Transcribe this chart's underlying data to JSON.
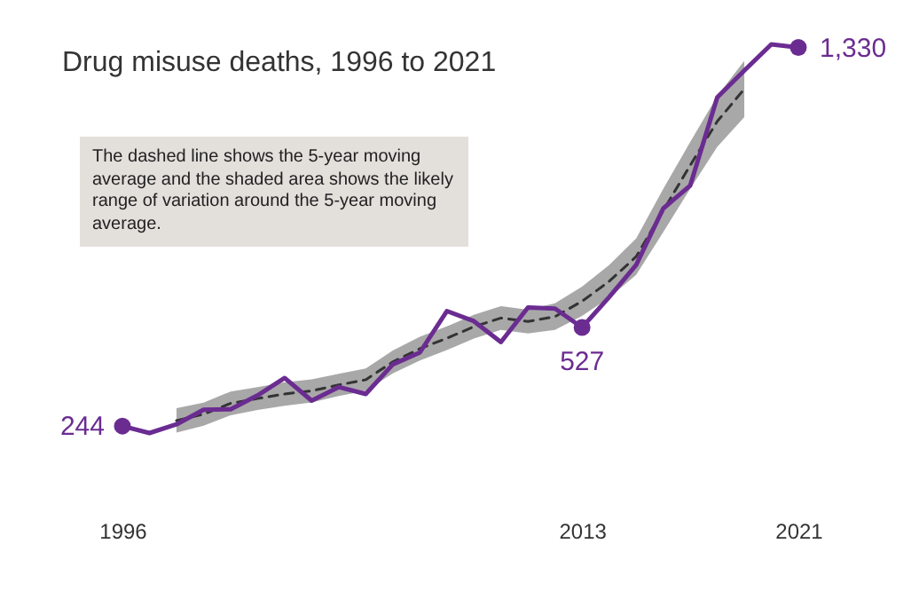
{
  "chart_data": {
    "type": "line",
    "title": "Drug misuse deaths, 1996 to 2021",
    "annotations": [
      "The dashed line shows the 5-year moving average and the shaded area shows the likely range of variation around the 5-year moving average."
    ],
    "categories": [
      "1996",
      null,
      null,
      null,
      null,
      null,
      null,
      null,
      null,
      null,
      null,
      null,
      null,
      null,
      null,
      null,
      null,
      "2013",
      null,
      null,
      null,
      null,
      null,
      null,
      null,
      "2021"
    ],
    "series": [
      {
        "color": "#6b2c91",
        "values": [
          244,
          224,
          249,
          291,
          292,
          332,
          382,
          317,
          356,
          336,
          421,
          455,
          574,
          545,
          485,
          584,
          581,
          527,
          614,
          706,
          868,
          934,
          1187,
          1264,
          1339,
          1330
        ],
        "value_labels": [
          "244",
          null,
          null,
          null,
          null,
          null,
          null,
          null,
          null,
          null,
          null,
          null,
          null,
          null,
          null,
          null,
          null,
          "527",
          null,
          null,
          null,
          null,
          null,
          null,
          null,
          "1,330"
        ]
      },
      {
        "type": "line",
        "line_style": "dashed",
        "color": "#333333",
        "values": [
          null,
          null,
          260,
          278,
          309,
          323,
          336,
          345,
          362,
          377,
          428,
          466,
          496,
          529,
          554,
          544,
          558,
          602,
          659,
          730,
          862,
          992,
          1118,
          1211,
          null,
          null
        ],
        "lower": [
          null,
          null,
          225,
          245,
          275,
          290,
          302,
          312,
          330,
          345,
          395,
          432,
          462,
          495,
          520,
          510,
          520,
          560,
          612,
          678,
          800,
          925,
          1045,
          1130,
          null,
          null
        ],
        "upper": [
          null,
          null,
          295,
          311,
          343,
          356,
          370,
          378,
          394,
          409,
          461,
          500,
          530,
          563,
          588,
          578,
          596,
          644,
          706,
          782,
          924,
          1059,
          1191,
          1292,
          null,
          null
        ]
      }
    ]
  }
}
